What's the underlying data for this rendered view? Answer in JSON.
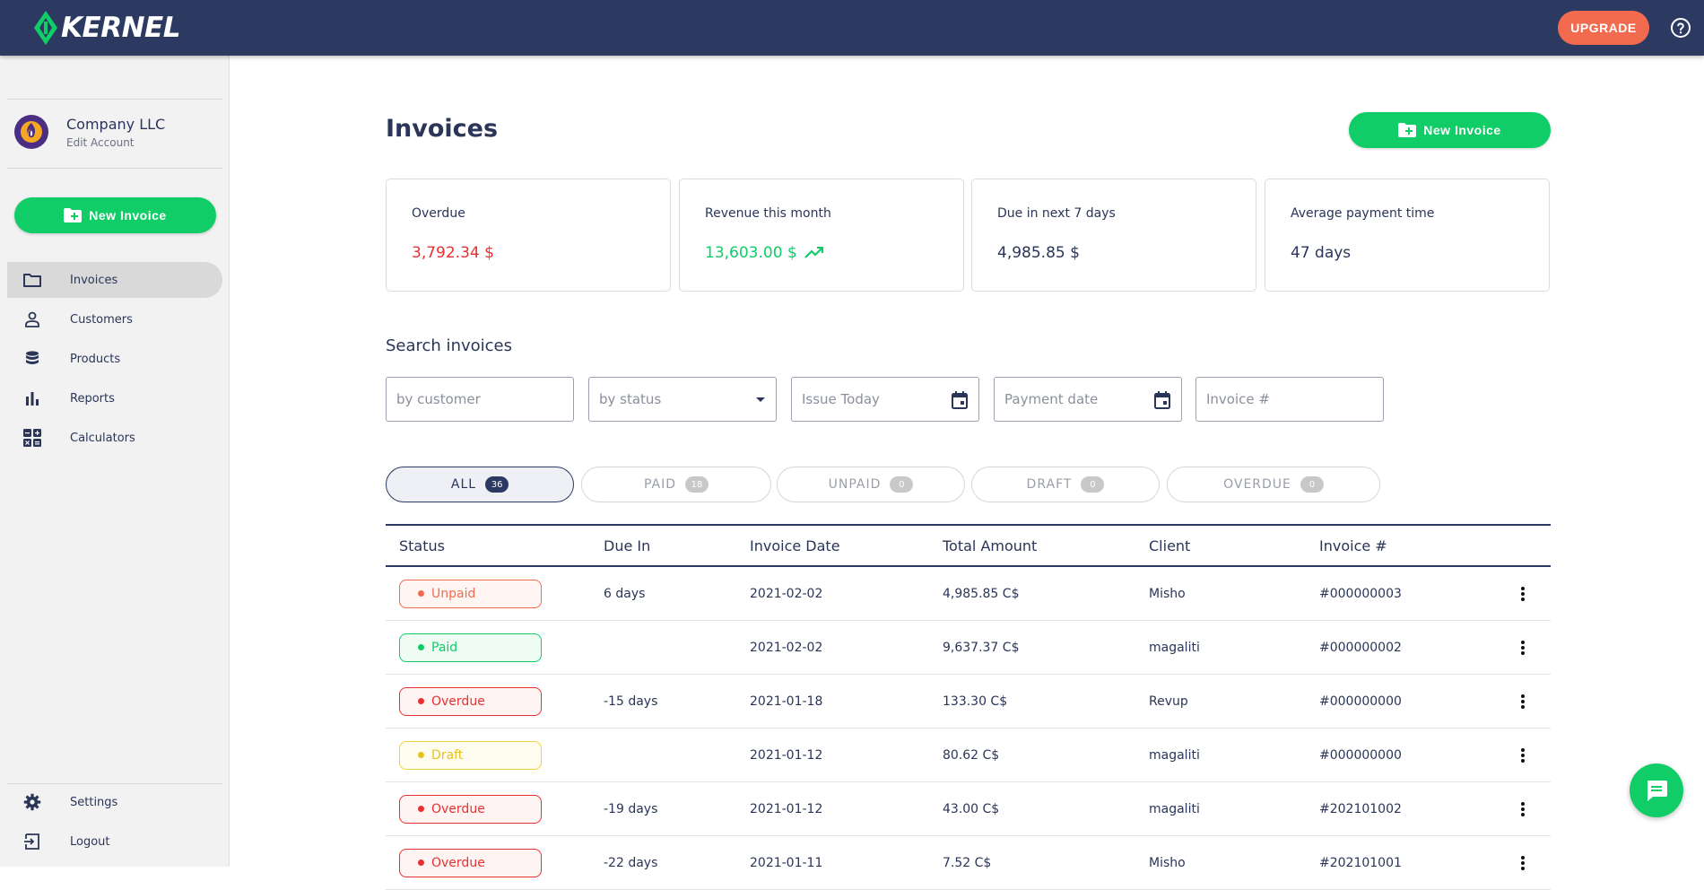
{
  "brand": {
    "name": "KERNEL"
  },
  "topbar": {
    "upgrade_label": "UPGRADE"
  },
  "account": {
    "name": "Company LLC",
    "edit_label": "Edit Account"
  },
  "sidebar": {
    "new_invoice_label": "New Invoice",
    "items": [
      {
        "label": "Invoices",
        "icon": "folder-icon",
        "active": true
      },
      {
        "label": "Customers",
        "icon": "person-icon",
        "active": false
      },
      {
        "label": "Products",
        "icon": "database-icon",
        "active": false
      },
      {
        "label": "Reports",
        "icon": "bar-chart-icon",
        "active": false
      },
      {
        "label": "Calculators",
        "icon": "calculator-icon",
        "active": false
      }
    ],
    "bottom_items": [
      {
        "label": "Settings",
        "icon": "gear-icon"
      },
      {
        "label": "Logout",
        "icon": "logout-icon"
      }
    ]
  },
  "main": {
    "title": "Invoices",
    "new_invoice_label": "New Invoice",
    "stats": [
      {
        "label": "Overdue",
        "value": "3,792.34 $",
        "color": "#e8312f"
      },
      {
        "label": "Revenue this month",
        "value": "13,603.00 $",
        "color": "#10cd67",
        "trend_icon": "trending-up-icon"
      },
      {
        "label": "Due in next 7 days",
        "value": "4,985.85 $",
        "color": "#2a3558"
      },
      {
        "label": "Average payment time",
        "value": "47 days",
        "color": "#2a3558"
      }
    ],
    "search": {
      "title": "Search invoices",
      "customer_placeholder": "by customer",
      "status_placeholder": "by status",
      "issue_placeholder": "Issue Today",
      "payment_placeholder": "Payment date",
      "invoice_placeholder": "Invoice #"
    },
    "filters": [
      {
        "label": "ALL",
        "count": "36",
        "active": true
      },
      {
        "label": "PAID",
        "count": "18",
        "active": false
      },
      {
        "label": "UNPAID",
        "count": "0",
        "active": false
      },
      {
        "label": "DRAFT",
        "count": "0",
        "active": false
      },
      {
        "label": "OVERDUE",
        "count": "0",
        "active": false
      }
    ],
    "table": {
      "columns": [
        "Status",
        "Due In",
        "Invoice Date",
        "Total Amount",
        "Client",
        "Invoice #"
      ],
      "rows": [
        {
          "status": "Unpaid",
          "due_in": "6 days",
          "date": "2021-02-02",
          "amount": "4,985.85 C$",
          "client": "Misho",
          "number": "#000000003"
        },
        {
          "status": "Paid",
          "due_in": "",
          "date": "2021-02-02",
          "amount": "9,637.37 C$",
          "client": "magaliti",
          "number": "#000000002"
        },
        {
          "status": "Overdue",
          "due_in": "-15 days",
          "date": "2021-01-18",
          "amount": "133.30 C$",
          "client": "Revup",
          "number": "#000000000"
        },
        {
          "status": "Draft",
          "due_in": "",
          "date": "2021-01-12",
          "amount": "80.62 C$",
          "client": "magaliti",
          "number": "#000000000"
        },
        {
          "status": "Overdue",
          "due_in": "-19 days",
          "date": "2021-01-12",
          "amount": "43.00 C$",
          "client": "magaliti",
          "number": "#202101002"
        },
        {
          "status": "Overdue",
          "due_in": "-22 days",
          "date": "2021-01-11",
          "amount": "7.52 C$",
          "client": "Misho",
          "number": "#202101001"
        }
      ]
    },
    "status_colors": {
      "Unpaid": {
        "fg": "#f26b4f",
        "bg": "#fff6f3",
        "border": "#f26b4f"
      },
      "Paid": {
        "fg": "#10cd67",
        "bg": "#effcf4",
        "border": "#10cd67"
      },
      "Overdue": {
        "fg": "#e8312f",
        "bg": "#fff4f4",
        "border": "#e8312f"
      },
      "Draft": {
        "fg": "#e8c21a",
        "bg": "#fffdf0",
        "border": "#f2d33c"
      }
    }
  },
  "chat": {
    "icon": "chat-icon"
  }
}
